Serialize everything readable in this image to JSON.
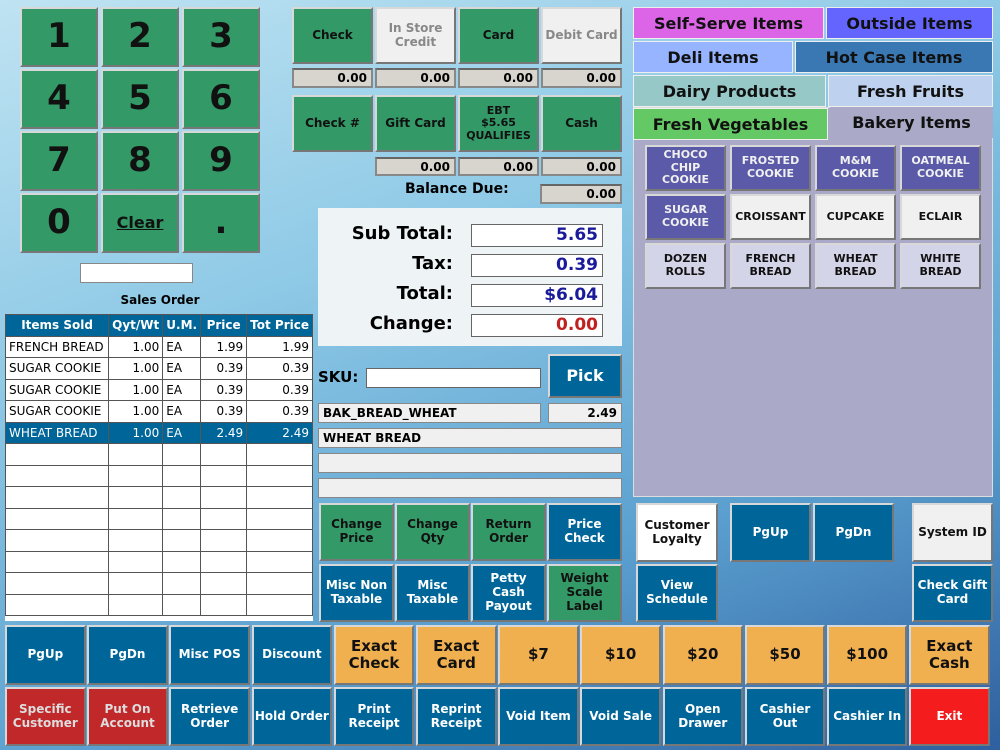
{
  "keypad": [
    "1",
    "2",
    "3",
    "4",
    "5",
    "6",
    "7",
    "8",
    "9",
    "0",
    "Clear",
    "."
  ],
  "keypad_display": "",
  "sales_order": {
    "title": "Sales Order",
    "columns": [
      "Items Sold",
      "Qyt/Wt",
      "U.M.",
      "Price",
      "Tot Price"
    ],
    "rows": [
      [
        "FRENCH BREAD",
        "1.00",
        "EA",
        "1.99",
        "1.99"
      ],
      [
        "SUGAR COOKIE",
        "1.00",
        "EA",
        "0.39",
        "0.39"
      ],
      [
        "SUGAR COOKIE",
        "1.00",
        "EA",
        "0.39",
        "0.39"
      ],
      [
        "SUGAR COOKIE",
        "1.00",
        "EA",
        "0.39",
        "0.39"
      ],
      [
        "WHEAT BREAD",
        "1.00",
        "EA",
        "2.49",
        "2.49"
      ]
    ],
    "selected_row": 4
  },
  "payments": {
    "row1": [
      "Check",
      "In Store Credit",
      "Card",
      "Debit Card"
    ],
    "row1_amounts": [
      "0.00",
      "0.00",
      "0.00",
      "0.00"
    ],
    "row2": [
      "Check #",
      "Gift Card",
      "EBT\n$5.65\nQUALIFIES",
      "Cash"
    ],
    "row2_amounts": [
      "0.00",
      "0.00",
      "0.00"
    ],
    "balance_due_label": "Balance Due:",
    "balance_due": "0.00"
  },
  "totals": {
    "subtotal_label": "Sub Total:",
    "subtotal": "5.65",
    "tax_label": "Tax:",
    "tax": "0.39",
    "total_label": "Total:",
    "total": "$6.04",
    "change_label": "Change:",
    "change": "0.00"
  },
  "sku": {
    "label": "SKU:",
    "value": "",
    "pick": "Pick",
    "code": "BAK_BREAD_WHEAT",
    "price": "2.49",
    "description": "WHEAT BREAD",
    "line3": "",
    "line4": ""
  },
  "actions": [
    "Change Price",
    "Change Qty",
    "Return Order",
    "Price Check",
    "Misc Non Taxable",
    "Misc Taxable",
    "Petty Cash Payout",
    "Weight Scale Label"
  ],
  "categories": [
    "Self-Serve Items",
    "Outside Items",
    "Deli Items",
    "Hot Case Items",
    "Dairy Products",
    "Fresh Fruits",
    "Fresh Vegetables",
    "Bakery Items"
  ],
  "active_category": "Bakery Items",
  "items": [
    "CHOCO CHIP COOKIE",
    "FROSTED COOKIE",
    "M&M COOKIE",
    "OATMEAL COOKIE",
    "SUGAR COOKIE",
    "CROISSANT",
    "CUPCAKE",
    "ECLAIR",
    "DOZEN ROLLS",
    "FRENCH BREAD",
    "WHEAT BREAD",
    "WHITE BREAD"
  ],
  "side": {
    "customer_loyalty": "Customer Loyalty",
    "view_schedule": "View Schedule",
    "pgup": "PgUp",
    "pgdn": "PgDn",
    "system_id": "System ID",
    "check_gift_card": "Check Gift Card"
  },
  "bottom_row1": [
    "PgUp",
    "PgDn",
    "Misc POS",
    "Discount",
    "Exact Check",
    "Exact Card",
    "$7",
    "$10",
    "$20",
    "$50",
    "$100",
    "Exact Cash"
  ],
  "bottom_row2": [
    "Specific Customer",
    "Put On Account",
    "Retrieve Order",
    "Hold Order",
    "Print Receipt",
    "Reprint Receipt",
    "Void Item",
    "Void Sale",
    "Open Drawer",
    "Cashier Out",
    "Cashier In",
    "Exit"
  ],
  "colors": {
    "green": "#339966",
    "blue": "#006699",
    "orange": "#f0b050",
    "red": "#c0282a",
    "exit": "#f41c1c",
    "purple": "#5b5aa8"
  }
}
